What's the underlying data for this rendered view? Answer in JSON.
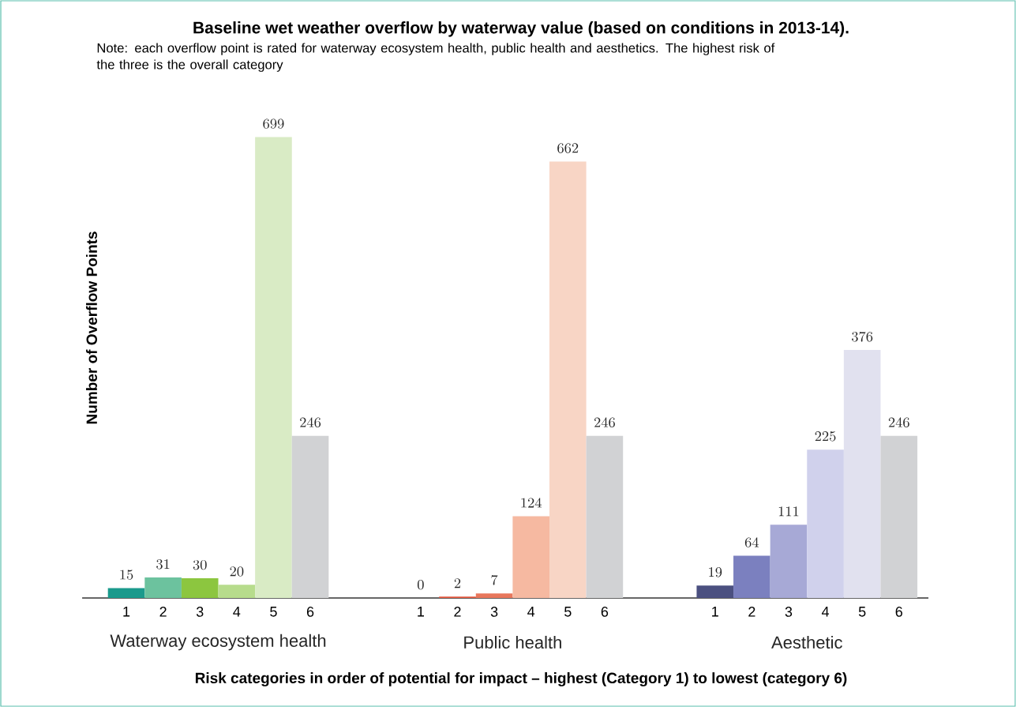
{
  "chart_data": {
    "type": "bar",
    "title": "Baseline wet weather overflow by waterway value (based on conditions in 2013-14).",
    "subtitle": "Note: each overflow point is rated for waterway ecosystem health, public health and aesthetics. The highest risk of the three is the overall category",
    "xlabel": "Risk categories in order of potential for impact – highest (Category 1) to lowest (category 6)",
    "ylabel": "Number of Overflow Points",
    "categories": [
      "1",
      "2",
      "3",
      "4",
      "5",
      "6",
      null,
      null,
      "1",
      "2",
      "3",
      "4",
      "5",
      "6",
      null,
      null,
      "1",
      "2",
      "3",
      "4",
      "5",
      "6"
    ],
    "values": [
      15,
      31,
      30,
      20,
      699,
      246,
      null,
      null,
      0,
      2,
      7,
      124,
      662,
      246,
      null,
      null,
      19,
      64,
      111,
      225,
      376,
      246
    ],
    "colors": [
      "#1a9a8c",
      "#6cc29e",
      "#8cc63f",
      "#b7dc8c",
      "#d9ebc5",
      "#d1d2d4",
      null,
      null,
      "#e3583f",
      "#e3583f",
      "#e8775c",
      "#f6b9a1",
      "#f8d5c5",
      "#d1d2d4",
      null,
      null,
      "#4b5080",
      "#7b80bf",
      "#a7a9d6",
      "#d0d1ec",
      "#e1e1ef",
      "#d1d2d4"
    ],
    "data_labels": true,
    "annotations": [
      "Waterway ecosystem health",
      "Public health",
      "Aesthetic"
    ]
  }
}
